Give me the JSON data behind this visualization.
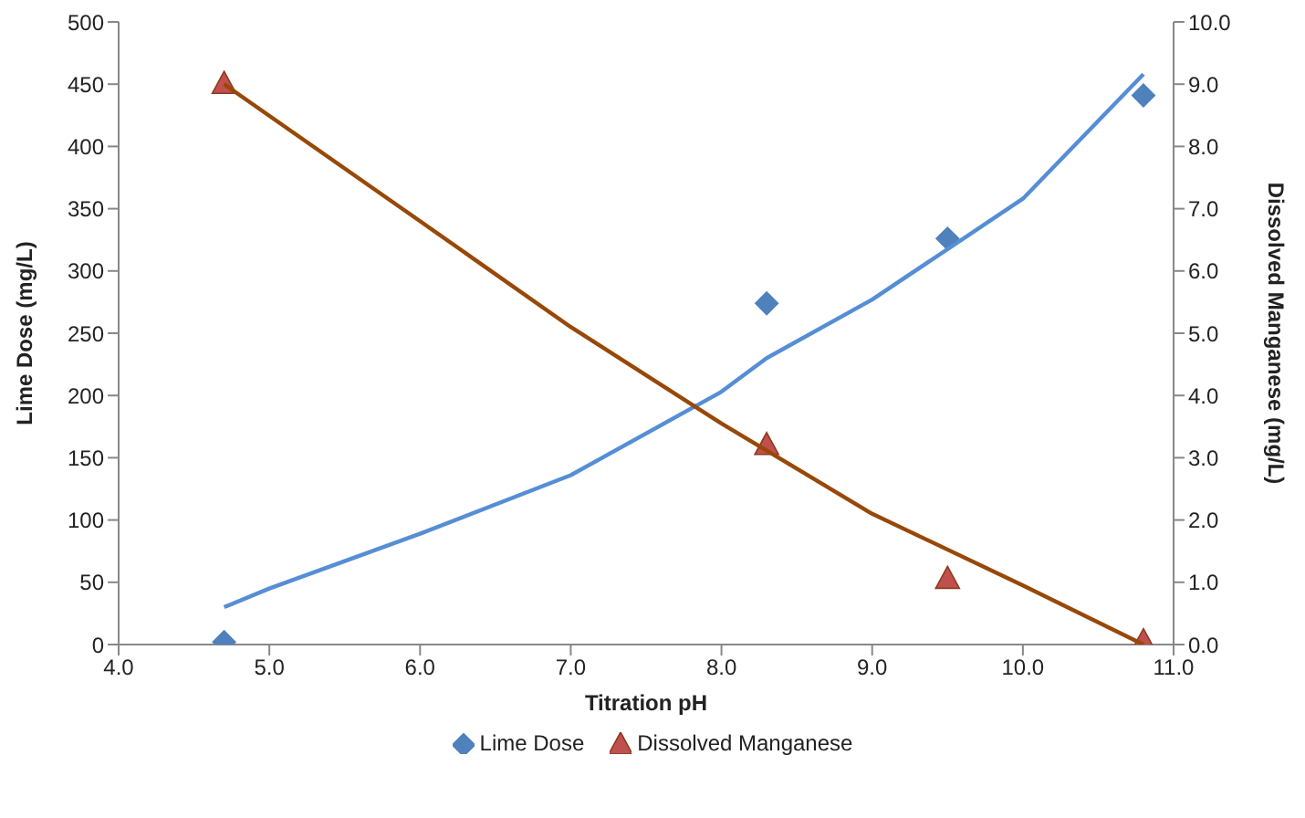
{
  "chart_data": {
    "type": "scatter",
    "xlabel": "Titration pH",
    "ylabel": "Lime Dose (mg/L)",
    "y2label": "Dissolved Manganese (mg/L)",
    "xlim": [
      4,
      11
    ],
    "xticks": [
      {
        "value": 4,
        "label": "4.0"
      },
      {
        "value": 5,
        "label": "5.0"
      },
      {
        "value": 6,
        "label": "6.0"
      },
      {
        "value": 7,
        "label": "7.0"
      },
      {
        "value": 8,
        "label": "8.0"
      },
      {
        "value": 9,
        "label": "9.0"
      },
      {
        "value": 10,
        "label": "10.0"
      },
      {
        "value": 11,
        "label": "11.0"
      }
    ],
    "ylim": [
      0,
      500
    ],
    "yticks": [
      0,
      50,
      100,
      150,
      200,
      250,
      300,
      350,
      400,
      450,
      500
    ],
    "y2lim": [
      0,
      10
    ],
    "y2ticks": [
      {
        "value": 0,
        "label": "0.0"
      },
      {
        "value": 1,
        "label": "1.0"
      },
      {
        "value": 2,
        "label": "2.0"
      },
      {
        "value": 3,
        "label": "3.0"
      },
      {
        "value": 4,
        "label": "4.0"
      },
      {
        "value": 5,
        "label": "5.0"
      },
      {
        "value": 6,
        "label": "6.0"
      },
      {
        "value": 7,
        "label": "7.0"
      },
      {
        "value": 8,
        "label": "8.0"
      },
      {
        "value": 9,
        "label": "9.0"
      },
      {
        "value": 10,
        "label": "10.0"
      }
    ],
    "grid": false,
    "legend": "bottom",
    "series": [
      {
        "name": "Lime Dose",
        "marker": "diamond",
        "color": "#4f81bd",
        "x": [
          4.7,
          8.3,
          9.5,
          10.8
        ],
        "values": [
          2,
          274,
          326,
          441
        ]
      },
      {
        "type": "line",
        "marker": "none",
        "line_style": "solid",
        "color": "#558ed5",
        "x": [
          4.7,
          5.0,
          6.0,
          7.0,
          8.0,
          8.3,
          9.0,
          10.0,
          10.8
        ],
        "values": [
          30,
          45,
          89,
          136,
          203,
          230,
          277,
          358,
          458
        ]
      },
      {
        "name": "Dissolved Manganese",
        "marker": "triangle",
        "axis": "y2",
        "color": "#c0504d",
        "x": [
          4.7,
          8.3,
          9.5,
          10.8
        ],
        "values": [
          9.0,
          3.2,
          1.05,
          0.05
        ]
      },
      {
        "type": "line",
        "marker": "none",
        "line_style": "solid",
        "axis": "y2",
        "color": "#984807",
        "x": [
          4.7,
          6.0,
          7.0,
          8.0,
          9.0,
          10.0,
          10.8
        ],
        "values": [
          9.0,
          6.8,
          5.1,
          3.55,
          2.1,
          0.95,
          0.0
        ]
      }
    ]
  }
}
